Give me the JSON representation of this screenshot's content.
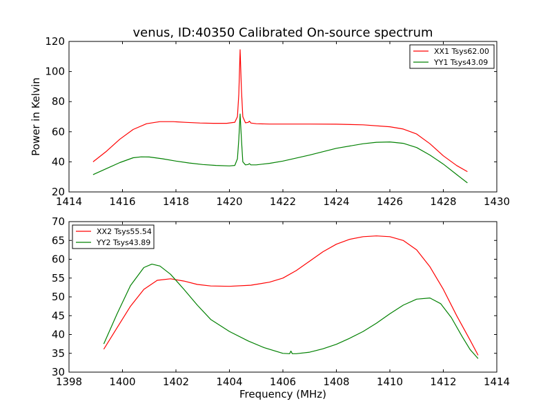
{
  "figure": {
    "title": "venus, ID:40350 Calibrated On-source spectrum",
    "background": "#ffffff"
  },
  "chart_data": [
    {
      "type": "line",
      "title": "venus, ID:40350 Calibrated On-source spectrum",
      "xlabel": "",
      "ylabel": "Power in Kelvin",
      "xlim": [
        1414,
        1430
      ],
      "ylim": [
        20,
        120
      ],
      "xticks": [
        1414,
        1416,
        1418,
        1420,
        1422,
        1424,
        1426,
        1428,
        1430
      ],
      "yticks": [
        20,
        40,
        60,
        80,
        100,
        120
      ],
      "grid": false,
      "legend": "top-right",
      "series": [
        {
          "name": "XX1 Tsys62.00",
          "color": "#ff0000",
          "x": [
            1414.9,
            1415.4,
            1415.9,
            1416.4,
            1416.9,
            1417.4,
            1417.9,
            1418.4,
            1418.9,
            1419.4,
            1419.9,
            1420.2,
            1420.3,
            1420.35,
            1420.4,
            1420.45,
            1420.5,
            1420.6,
            1420.7,
            1420.75,
            1420.8,
            1421.0,
            1421.5,
            1422.0,
            1423.0,
            1424.0,
            1425.0,
            1426.0,
            1426.5,
            1427.0,
            1427.5,
            1428.0,
            1428.5,
            1428.9
          ],
          "y": [
            40,
            47,
            55,
            61.5,
            65.3,
            66.7,
            66.7,
            66.2,
            65.8,
            65.6,
            65.6,
            66.3,
            70,
            85,
            114.5,
            88,
            70,
            65.9,
            66.2,
            67,
            65.8,
            65.3,
            65.1,
            65.1,
            65.1,
            65.0,
            64.6,
            63.3,
            61.8,
            58.5,
            52,
            44,
            37.5,
            33.5
          ]
        },
        {
          "name": "YY1 Tsys43.09",
          "color": "#008000",
          "x": [
            1414.9,
            1415.4,
            1415.9,
            1416.4,
            1416.7,
            1417.0,
            1417.5,
            1418.0,
            1418.5,
            1419.0,
            1419.5,
            1420.0,
            1420.2,
            1420.3,
            1420.35,
            1420.4,
            1420.45,
            1420.5,
            1420.6,
            1420.7,
            1420.75,
            1420.8,
            1421.0,
            1421.5,
            1422.0,
            1423.0,
            1424.0,
            1425.0,
            1425.5,
            1426.0,
            1426.5,
            1427.0,
            1427.5,
            1428.0,
            1428.5,
            1428.9
          ],
          "y": [
            31.5,
            35.5,
            39.5,
            42.7,
            43.3,
            43.2,
            42.0,
            40.5,
            39.2,
            38.2,
            37.6,
            37.3,
            37.6,
            42,
            55,
            71.8,
            55,
            40,
            38.0,
            38.2,
            38.8,
            38.0,
            38.0,
            39.0,
            40.5,
            44.5,
            49.0,
            52.0,
            53.0,
            53.2,
            52.3,
            49.5,
            44.5,
            38.5,
            31.5,
            26
          ]
        }
      ]
    },
    {
      "type": "line",
      "title": "",
      "xlabel": "Frequency (MHz)",
      "ylabel": "",
      "xlim": [
        1398,
        1414
      ],
      "ylim": [
        30,
        70
      ],
      "xticks": [
        1398,
        1400,
        1402,
        1404,
        1406,
        1408,
        1410,
        1412,
        1414
      ],
      "yticks": [
        30,
        35,
        40,
        45,
        50,
        55,
        60,
        65,
        70
      ],
      "grid": false,
      "legend": "top-left",
      "series": [
        {
          "name": "XX2 Tsys55.54",
          "color": "#ff0000",
          "x": [
            1399.3,
            1399.8,
            1400.3,
            1400.8,
            1401.3,
            1401.8,
            1402.3,
            1402.8,
            1403.3,
            1404.0,
            1404.8,
            1405.5,
            1406.0,
            1406.5,
            1407.0,
            1407.5,
            1408.0,
            1408.5,
            1409.0,
            1409.5,
            1410.0,
            1410.5,
            1411.0,
            1411.5,
            1412.0,
            1412.5,
            1413.0,
            1413.3
          ],
          "y": [
            36.1,
            41.8,
            47.5,
            52.0,
            54.4,
            54.8,
            54.2,
            53.3,
            52.9,
            52.8,
            53.1,
            53.9,
            55.0,
            57.0,
            59.5,
            62.0,
            64.0,
            65.3,
            66.0,
            66.2,
            66.0,
            65.0,
            62.5,
            58.0,
            52.0,
            45.0,
            38.5,
            34.5
          ]
        },
        {
          "name": "YY2 Tsys43.89",
          "color": "#008000",
          "x": [
            1399.3,
            1399.8,
            1400.3,
            1400.8,
            1401.1,
            1401.4,
            1401.8,
            1402.3,
            1402.8,
            1403.3,
            1404.0,
            1404.7,
            1405.3,
            1406.0,
            1406.25,
            1406.3,
            1406.35,
            1406.5,
            1407.0,
            1407.5,
            1408.0,
            1408.5,
            1409.0,
            1409.5,
            1410.0,
            1410.5,
            1411.0,
            1411.5,
            1411.9,
            1412.3,
            1412.7,
            1413.0,
            1413.3
          ],
          "y": [
            37.5,
            45.5,
            53.0,
            57.8,
            58.7,
            58.2,
            56.0,
            52.0,
            47.8,
            44.0,
            40.8,
            38.3,
            36.5,
            35.0,
            34.9,
            35.6,
            34.9,
            34.9,
            35.3,
            36.2,
            37.4,
            39.0,
            40.8,
            43.0,
            45.5,
            47.8,
            49.4,
            49.7,
            48.2,
            44.5,
            39.5,
            36.0,
            33.6
          ]
        }
      ]
    }
  ]
}
